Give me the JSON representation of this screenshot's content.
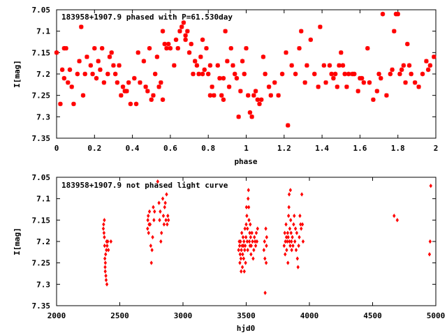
{
  "chart_data": [
    {
      "type": "scatter",
      "title": "183958+1907.9 phased with P=61.530day",
      "xlabel": "phase",
      "ylabel": "I[mag]",
      "xlim": [
        0,
        2
      ],
      "ylim": [
        7.35,
        7.05
      ],
      "y_inverted": true,
      "x_ticks": [
        "0",
        "0.2",
        "0.4",
        "0.6",
        "0.8",
        "1",
        "1.2",
        "1.4",
        "1.6",
        "1.8",
        "2"
      ],
      "x_tick_values": [
        0,
        0.2,
        0.4,
        0.6,
        0.8,
        1,
        1.2,
        1.4,
        1.6,
        1.8,
        2
      ],
      "y_ticks": [
        "7.05",
        "7.1",
        "7.15",
        "7.2",
        "7.25",
        "7.3",
        "7.35"
      ],
      "y_tick_values": [
        7.05,
        7.1,
        7.15,
        7.2,
        7.25,
        7.3,
        7.35
      ],
      "grid": false,
      "marker_color": "#ff0000",
      "points": [
        [
          0.0,
          7.15
        ],
        [
          0.02,
          7.27
        ],
        [
          0.03,
          7.19
        ],
        [
          0.04,
          7.21
        ],
        [
          0.04,
          7.14
        ],
        [
          0.05,
          7.14
        ],
        [
          0.06,
          7.22
        ],
        [
          0.07,
          7.19
        ],
        [
          0.08,
          7.23
        ],
        [
          0.09,
          7.27
        ],
        [
          0.11,
          7.2
        ],
        [
          0.12,
          7.17
        ],
        [
          0.13,
          7.09
        ],
        [
          0.14,
          7.25
        ],
        [
          0.15,
          7.2
        ],
        [
          0.16,
          7.16
        ],
        [
          0.18,
          7.18
        ],
        [
          0.19,
          7.2
        ],
        [
          0.2,
          7.14
        ],
        [
          0.21,
          7.21
        ],
        [
          0.22,
          7.17
        ],
        [
          0.23,
          7.19
        ],
        [
          0.24,
          7.14
        ],
        [
          0.25,
          7.22
        ],
        [
          0.27,
          7.2
        ],
        [
          0.28,
          7.16
        ],
        [
          0.29,
          7.15
        ],
        [
          0.3,
          7.18
        ],
        [
          0.31,
          7.2
        ],
        [
          0.32,
          7.22
        ],
        [
          0.33,
          7.18
        ],
        [
          0.34,
          7.25
        ],
        [
          0.35,
          7.23
        ],
        [
          0.36,
          7.24
        ],
        [
          0.37,
          7.24
        ],
        [
          0.38,
          7.22
        ],
        [
          0.39,
          7.27
        ],
        [
          0.41,
          7.21
        ],
        [
          0.42,
          7.27
        ],
        [
          0.43,
          7.15
        ],
        [
          0.44,
          7.22
        ],
        [
          0.46,
          7.17
        ],
        [
          0.47,
          7.23
        ],
        [
          0.48,
          7.24
        ],
        [
          0.49,
          7.14
        ],
        [
          0.5,
          7.26
        ],
        [
          0.51,
          7.25
        ],
        [
          0.52,
          7.2
        ],
        [
          0.53,
          7.16
        ],
        [
          0.54,
          7.23
        ],
        [
          0.55,
          7.22
        ],
        [
          0.56,
          7.1
        ],
        [
          0.56,
          7.26
        ],
        [
          0.57,
          7.13
        ],
        [
          0.58,
          7.14
        ],
        [
          0.59,
          7.13
        ],
        [
          0.6,
          7.14
        ],
        [
          0.62,
          7.18
        ],
        [
          0.63,
          7.12
        ],
        [
          0.64,
          7.14
        ],
        [
          0.65,
          7.1
        ],
        [
          0.66,
          7.09
        ],
        [
          0.67,
          7.08
        ],
        [
          0.68,
          7.11
        ],
        [
          0.68,
          7.12
        ],
        [
          0.69,
          7.1
        ],
        [
          0.7,
          7.15
        ],
        [
          0.71,
          7.13
        ],
        [
          0.72,
          7.2
        ],
        [
          0.73,
          7.17
        ],
        [
          0.74,
          7.18
        ],
        [
          0.75,
          7.2
        ],
        [
          0.76,
          7.16
        ],
        [
          0.77,
          7.2
        ],
        [
          0.77,
          7.12
        ],
        [
          0.78,
          7.19
        ],
        [
          0.79,
          7.14
        ],
        [
          0.8,
          7.2
        ],
        [
          0.81,
          7.18
        ],
        [
          0.81,
          7.25
        ],
        [
          0.82,
          7.23
        ],
        [
          0.83,
          7.25
        ],
        [
          0.85,
          7.18
        ],
        [
          0.86,
          7.21
        ],
        [
          0.87,
          7.25
        ],
        [
          0.88,
          7.26
        ],
        [
          0.88,
          7.21
        ],
        [
          0.89,
          7.1
        ],
        [
          0.9,
          7.17
        ],
        [
          0.91,
          7.23
        ],
        [
          0.92,
          7.14
        ],
        [
          0.93,
          7.18
        ],
        [
          0.94,
          7.2
        ],
        [
          0.95,
          7.21
        ],
        [
          0.96,
          7.3
        ],
        [
          0.97,
          7.24
        ],
        [
          0.98,
          7.17
        ],
        [
          0.99,
          7.2
        ],
        [
          1.0,
          7.14
        ],
        [
          1.01,
          7.25
        ],
        [
          1.02,
          7.29
        ],
        [
          1.03,
          7.3
        ],
        [
          1.04,
          7.25
        ],
        [
          1.05,
          7.24
        ],
        [
          1.06,
          7.26
        ],
        [
          1.07,
          7.27
        ],
        [
          1.08,
          7.26
        ],
        [
          1.09,
          7.16
        ],
        [
          1.1,
          7.2
        ],
        [
          1.12,
          7.23
        ],
        [
          1.13,
          7.25
        ],
        [
          1.15,
          7.22
        ],
        [
          1.17,
          7.25
        ],
        [
          1.19,
          7.2
        ],
        [
          1.21,
          7.15
        ],
        [
          1.22,
          7.32
        ],
        [
          1.24,
          7.18
        ],
        [
          1.26,
          7.2
        ],
        [
          1.28,
          7.14
        ],
        [
          1.29,
          7.1
        ],
        [
          1.31,
          7.22
        ],
        [
          1.32,
          7.18
        ],
        [
          1.34,
          7.12
        ],
        [
          1.36,
          7.2
        ],
        [
          1.38,
          7.23
        ],
        [
          1.39,
          7.09
        ],
        [
          1.41,
          7.18
        ],
        [
          1.42,
          7.22
        ],
        [
          1.44,
          7.18
        ],
        [
          1.45,
          7.2
        ],
        [
          1.46,
          7.21
        ],
        [
          1.47,
          7.2
        ],
        [
          1.48,
          7.23
        ],
        [
          1.49,
          7.18
        ],
        [
          1.5,
          7.15
        ],
        [
          1.51,
          7.18
        ],
        [
          1.52,
          7.2
        ],
        [
          1.53,
          7.23
        ],
        [
          1.54,
          7.2
        ],
        [
          1.56,
          7.2
        ],
        [
          1.57,
          7.2
        ],
        [
          1.59,
          7.24
        ],
        [
          1.6,
          7.21
        ],
        [
          1.61,
          7.21
        ],
        [
          1.62,
          7.22
        ],
        [
          1.64,
          7.14
        ],
        [
          1.65,
          7.22
        ],
        [
          1.67,
          7.26
        ],
        [
          1.69,
          7.24
        ],
        [
          1.7,
          7.2
        ],
        [
          1.71,
          7.21
        ],
        [
          1.72,
          7.06
        ],
        [
          1.74,
          7.25
        ],
        [
          1.76,
          7.2
        ],
        [
          1.77,
          7.19
        ],
        [
          1.78,
          7.1
        ],
        [
          1.79,
          7.06
        ],
        [
          1.8,
          7.06
        ],
        [
          1.81,
          7.2
        ],
        [
          1.82,
          7.19
        ],
        [
          1.83,
          7.18
        ],
        [
          1.84,
          7.22
        ],
        [
          1.85,
          7.13
        ],
        [
          1.86,
          7.18
        ],
        [
          1.87,
          7.2
        ],
        [
          1.89,
          7.22
        ],
        [
          1.91,
          7.23
        ],
        [
          1.93,
          7.2
        ],
        [
          1.95,
          7.17
        ],
        [
          1.96,
          7.19
        ],
        [
          1.97,
          7.18
        ],
        [
          1.99,
          7.16
        ]
      ]
    },
    {
      "type": "scatter",
      "title": "183958+1907.9 not phased light curve",
      "xlabel": "hjd0",
      "ylabel": "I[mag]",
      "xlim": [
        2000,
        5000
      ],
      "ylim": [
        7.35,
        7.05
      ],
      "y_inverted": true,
      "x_ticks": [
        "2000",
        "2500",
        "3000",
        "3500",
        "4000",
        "4500",
        "5000"
      ],
      "x_tick_values": [
        2000,
        2500,
        3000,
        3500,
        4000,
        4500,
        5000
      ],
      "y_ticks": [
        "7.05",
        "7.1",
        "7.15",
        "7.2",
        "7.25",
        "7.3",
        "7.35"
      ],
      "y_tick_values": [
        7.05,
        7.1,
        7.15,
        7.2,
        7.25,
        7.3,
        7.35
      ],
      "grid": false,
      "marker_color": "#ff0000",
      "points": [
        [
          2370,
          7.17
        ],
        [
          2372,
          7.16
        ],
        [
          2375,
          7.18
        ],
        [
          2378,
          7.19
        ],
        [
          2380,
          7.21
        ],
        [
          2382,
          7.24
        ],
        [
          2384,
          7.26
        ],
        [
          2386,
          7.25
        ],
        [
          2388,
          7.23
        ],
        [
          2390,
          7.28
        ],
        [
          2392,
          7.29
        ],
        [
          2394,
          7.22
        ],
        [
          2396,
          7.2
        ],
        [
          2398,
          7.3
        ],
        [
          2400,
          7.21
        ],
        [
          2405,
          7.2
        ],
        [
          2410,
          7.22
        ],
        [
          2430,
          7.2
        ],
        [
          2378,
          7.15
        ],
        [
          2385,
          7.27
        ],
        [
          2720,
          7.17
        ],
        [
          2722,
          7.15
        ],
        [
          2725,
          7.14
        ],
        [
          2728,
          7.18
        ],
        [
          2732,
          7.16
        ],
        [
          2735,
          7.13
        ],
        [
          2740,
          7.16
        ],
        [
          2745,
          7.21
        ],
        [
          2750,
          7.25
        ],
        [
          2755,
          7.22
        ],
        [
          2760,
          7.19
        ],
        [
          2765,
          7.12
        ],
        [
          2770,
          7.15
        ],
        [
          2775,
          7.13
        ],
        [
          2800,
          7.06
        ],
        [
          2810,
          7.11
        ],
        [
          2815,
          7.15
        ],
        [
          2820,
          7.13
        ],
        [
          2825,
          7.2
        ],
        [
          2830,
          7.18
        ],
        [
          2840,
          7.1
        ],
        [
          2845,
          7.14
        ],
        [
          2850,
          7.16
        ],
        [
          2855,
          7.12
        ],
        [
          2860,
          7.11
        ],
        [
          2865,
          7.15
        ],
        [
          2870,
          7.09
        ],
        [
          2875,
          7.16
        ],
        [
          2880,
          7.14
        ],
        [
          2885,
          7.15
        ],
        [
          3440,
          7.22
        ],
        [
          3445,
          7.2
        ],
        [
          3448,
          7.21
        ],
        [
          3450,
          7.25
        ],
        [
          3452,
          7.23
        ],
        [
          3455,
          7.2
        ],
        [
          3458,
          7.24
        ],
        [
          3460,
          7.27
        ],
        [
          3462,
          7.22
        ],
        [
          3465,
          7.18
        ],
        [
          3468,
          7.21
        ],
        [
          3470,
          7.26
        ],
        [
          3472,
          7.23
        ],
        [
          3475,
          7.19
        ],
        [
          3478,
          7.21
        ],
        [
          3480,
          7.24
        ],
        [
          3482,
          7.2
        ],
        [
          3485,
          7.27
        ],
        [
          3488,
          7.22
        ],
        [
          3490,
          7.17
        ],
        [
          3492,
          7.21
        ],
        [
          3495,
          7.25
        ],
        [
          3498,
          7.19
        ],
        [
          3500,
          7.16
        ],
        [
          3502,
          7.12
        ],
        [
          3505,
          7.14
        ],
        [
          3508,
          7.2
        ],
        [
          3510,
          7.17
        ],
        [
          3512,
          7.22
        ],
        [
          3515,
          7.1
        ],
        [
          3518,
          7.08
        ],
        [
          3520,
          7.12
        ],
        [
          3522,
          7.15
        ],
        [
          3525,
          7.2
        ],
        [
          3528,
          7.18
        ],
        [
          3530,
          7.21
        ],
        [
          3532,
          7.16
        ],
        [
          3535,
          7.19
        ],
        [
          3538,
          7.23
        ],
        [
          3540,
          7.21
        ],
        [
          3545,
          7.18
        ],
        [
          3550,
          7.2
        ],
        [
          3555,
          7.24
        ],
        [
          3560,
          7.22
        ],
        [
          3565,
          7.19
        ],
        [
          3570,
          7.2
        ],
        [
          3575,
          7.21
        ],
        [
          3580,
          7.18
        ],
        [
          3585,
          7.2
        ],
        [
          3590,
          7.17
        ],
        [
          3640,
          7.22
        ],
        [
          3645,
          7.2
        ],
        [
          3648,
          7.24
        ],
        [
          3650,
          7.32
        ],
        [
          3655,
          7.17
        ],
        [
          3658,
          7.25
        ],
        [
          3660,
          7.21
        ],
        [
          3662,
          7.19
        ],
        [
          3800,
          7.21
        ],
        [
          3805,
          7.18
        ],
        [
          3808,
          7.23
        ],
        [
          3810,
          7.2
        ],
        [
          3815,
          7.16
        ],
        [
          3818,
          7.19
        ],
        [
          3820,
          7.22
        ],
        [
          3825,
          7.2
        ],
        [
          3828,
          7.18
        ],
        [
          3830,
          7.25
        ],
        [
          3832,
          7.19
        ],
        [
          3835,
          7.14
        ],
        [
          3838,
          7.12
        ],
        [
          3840,
          7.09
        ],
        [
          3842,
          7.2
        ],
        [
          3845,
          7.17
        ],
        [
          3848,
          7.21
        ],
        [
          3850,
          7.08
        ],
        [
          3852,
          7.15
        ],
        [
          3855,
          7.18
        ],
        [
          3858,
          7.2
        ],
        [
          3860,
          7.22
        ],
        [
          3865,
          7.19
        ],
        [
          3870,
          7.21
        ],
        [
          3875,
          7.16
        ],
        [
          3880,
          7.14
        ],
        [
          3885,
          7.2
        ],
        [
          3890,
          7.17
        ],
        [
          3895,
          7.22
        ],
        [
          3900,
          7.18
        ],
        [
          3905,
          7.24
        ],
        [
          3910,
          7.26
        ],
        [
          3915,
          7.21
        ],
        [
          3920,
          7.19
        ],
        [
          3925,
          7.14
        ],
        [
          3930,
          7.16
        ],
        [
          3935,
          7.17
        ],
        [
          3940,
          7.09
        ],
        [
          3945,
          7.16
        ],
        [
          3950,
          7.2
        ],
        [
          4670,
          7.14
        ],
        [
          4695,
          7.15
        ],
        [
          4950,
          7.23
        ],
        [
          4955,
          7.2
        ],
        [
          4960,
          7.07
        ]
      ]
    }
  ]
}
